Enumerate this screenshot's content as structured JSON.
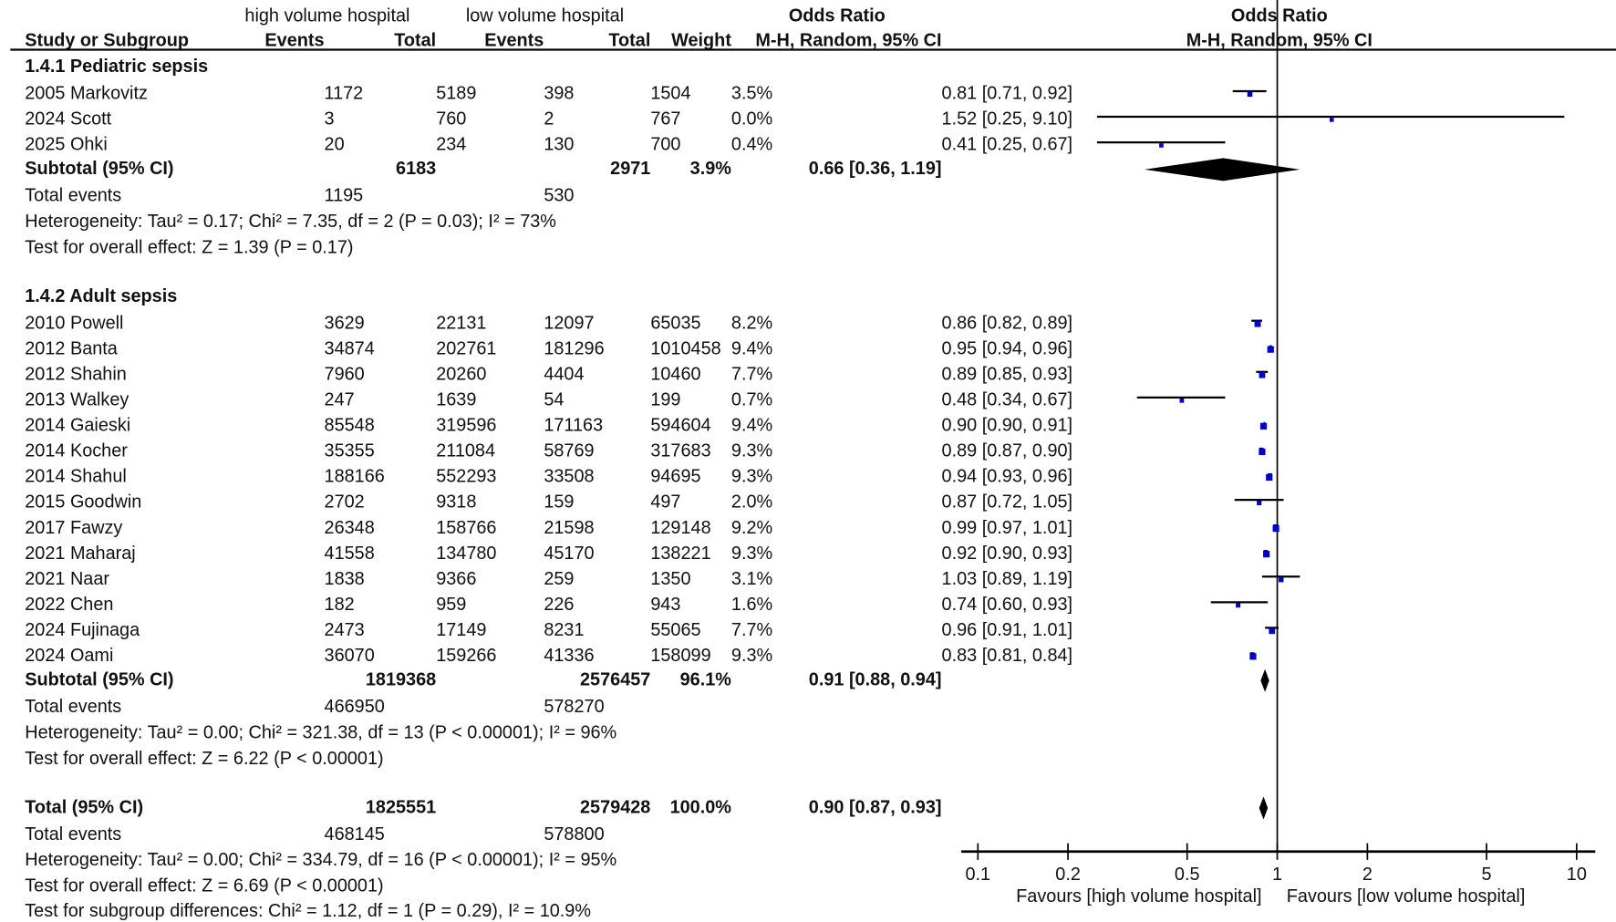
{
  "chart_data": {
    "type": "forest",
    "header": {
      "group_high": "high volume hospital",
      "group_low": "low volume hospital",
      "or_title": "Odds Ratio",
      "plot_title": "Odds Ratio",
      "study_col": "Study or Subgroup",
      "events": "Events",
      "total": "Total",
      "weight": "Weight",
      "method": "M-H, Random, 95% CI",
      "plot_method": "M-H, Random, 95% CI"
    },
    "x_axis": {
      "scale": "log",
      "ticks": [
        0.1,
        0.2,
        0.5,
        1,
        2,
        5,
        10
      ],
      "tick_labels": [
        "0.1",
        "0.2",
        "0.5",
        "1",
        "2",
        "5",
        "10"
      ],
      "xlim": [
        0.1,
        10
      ],
      "favours_left": "Favours [high volume hospital]",
      "favours_right": "Favours [low volume hospital]"
    },
    "colors": {
      "square": "#0000cc",
      "line": "#000000"
    },
    "subgroups": [
      {
        "title": "1.4.1 Pediatric sepsis",
        "studies": [
          {
            "name": "2005 Markovitz",
            "eh": "1172",
            "th": "5189",
            "el": "398",
            "tl": "1504",
            "weight": "3.5%",
            "w": 3.5,
            "ci_text": "0.81 [0.71, 0.92]",
            "or": 0.81,
            "lo": 0.71,
            "hi": 0.92
          },
          {
            "name": "2024 Scott",
            "eh": "3",
            "th": "760",
            "el": "2",
            "tl": "767",
            "weight": "0.0%",
            "w": 0.0,
            "ci_text": "1.52 [0.25, 9.10]",
            "or": 1.52,
            "lo": 0.25,
            "hi": 9.1
          },
          {
            "name": "2025 Ohki",
            "eh": "20",
            "th": "234",
            "el": "130",
            "tl": "700",
            "weight": "0.4%",
            "w": 0.4,
            "ci_text": "0.41 [0.25, 0.67]",
            "or": 0.41,
            "lo": 0.25,
            "hi": 0.67
          }
        ],
        "subtotal": {
          "label": "Subtotal (95% CI)",
          "th": "6183",
          "tl": "2971",
          "weight": "3.9%",
          "ci_text": "0.66 [0.36, 1.19]",
          "or": 0.66,
          "lo": 0.36,
          "hi": 1.19
        },
        "total_events": {
          "label": "Total events",
          "eh": "1195",
          "el": "530"
        },
        "heterogeneity": "Heterogeneity: Tau² = 0.17; Chi² = 7.35, df = 2 (P = 0.03); I² = 73%",
        "overall": "Test for overall effect: Z = 1.39 (P = 0.17)"
      },
      {
        "title": "1.4.2 Adult sepsis",
        "studies": [
          {
            "name": "2010 Powell",
            "eh": "3629",
            "th": "22131",
            "el": "12097",
            "tl": "65035",
            "weight": "8.2%",
            "w": 8.2,
            "ci_text": "0.86 [0.82, 0.89]",
            "or": 0.86,
            "lo": 0.82,
            "hi": 0.89
          },
          {
            "name": "2012 Banta",
            "eh": "34874",
            "th": "202761",
            "el": "181296",
            "tl": "1010458",
            "weight": "9.4%",
            "w": 9.4,
            "ci_text": "0.95 [0.94, 0.96]",
            "or": 0.95,
            "lo": 0.94,
            "hi": 0.96
          },
          {
            "name": "2012 Shahin",
            "eh": "7960",
            "th": "20260",
            "el": "4404",
            "tl": "10460",
            "weight": "7.7%",
            "w": 7.7,
            "ci_text": "0.89 [0.85, 0.93]",
            "or": 0.89,
            "lo": 0.85,
            "hi": 0.93
          },
          {
            "name": "2013 Walkey",
            "eh": "247",
            "th": "1639",
            "el": "54",
            "tl": "199",
            "weight": "0.7%",
            "w": 0.7,
            "ci_text": "0.48 [0.34, 0.67]",
            "or": 0.48,
            "lo": 0.34,
            "hi": 0.67
          },
          {
            "name": "2014 Gaieski",
            "eh": "85548",
            "th": "319596",
            "el": "171163",
            "tl": "594604",
            "weight": "9.4%",
            "w": 9.4,
            "ci_text": "0.90 [0.90, 0.91]",
            "or": 0.9,
            "lo": 0.9,
            "hi": 0.91
          },
          {
            "name": "2014 Kocher",
            "eh": "35355",
            "th": "211084",
            "el": "58769",
            "tl": "317683",
            "weight": "9.3%",
            "w": 9.3,
            "ci_text": "0.89 [0.87, 0.90]",
            "or": 0.89,
            "lo": 0.87,
            "hi": 0.9
          },
          {
            "name": "2014 Shahul",
            "eh": "188166",
            "th": "552293",
            "el": "33508",
            "tl": "94695",
            "weight": "9.3%",
            "w": 9.3,
            "ci_text": "0.94 [0.93, 0.96]",
            "or": 0.94,
            "lo": 0.93,
            "hi": 0.96
          },
          {
            "name": "2015 Goodwin",
            "eh": "2702",
            "th": "9318",
            "el": "159",
            "tl": "497",
            "weight": "2.0%",
            "w": 2.0,
            "ci_text": "0.87 [0.72, 1.05]",
            "or": 0.87,
            "lo": 0.72,
            "hi": 1.05
          },
          {
            "name": "2017 Fawzy",
            "eh": "26348",
            "th": "158766",
            "el": "21598",
            "tl": "129148",
            "weight": "9.2%",
            "w": 9.2,
            "ci_text": "0.99 [0.97, 1.01]",
            "or": 0.99,
            "lo": 0.97,
            "hi": 1.01
          },
          {
            "name": "2021 Maharaj",
            "eh": "41558",
            "th": "134780",
            "el": "45170",
            "tl": "138221",
            "weight": "9.3%",
            "w": 9.3,
            "ci_text": "0.92 [0.90, 0.93]",
            "or": 0.92,
            "lo": 0.9,
            "hi": 0.93
          },
          {
            "name": "2021 Naar",
            "eh": "1838",
            "th": "9366",
            "el": "259",
            "tl": "1350",
            "weight": "3.1%",
            "w": 3.1,
            "ci_text": "1.03 [0.89, 1.19]",
            "or": 1.03,
            "lo": 0.89,
            "hi": 1.19
          },
          {
            "name": "2022 Chen",
            "eh": "182",
            "th": "959",
            "el": "226",
            "tl": "943",
            "weight": "1.6%",
            "w": 1.6,
            "ci_text": "0.74 [0.60, 0.93]",
            "or": 0.74,
            "lo": 0.6,
            "hi": 0.93
          },
          {
            "name": "2024 Fujinaga",
            "eh": "2473",
            "th": "17149",
            "el": "8231",
            "tl": "55065",
            "weight": "7.7%",
            "w": 7.7,
            "ci_text": "0.96 [0.91, 1.01]",
            "or": 0.96,
            "lo": 0.91,
            "hi": 1.01
          },
          {
            "name": "2024 Oami",
            "eh": "36070",
            "th": "159266",
            "el": "41336",
            "tl": "158099",
            "weight": "9.3%",
            "w": 9.3,
            "ci_text": "0.83 [0.81, 0.84]",
            "or": 0.83,
            "lo": 0.81,
            "hi": 0.84
          }
        ],
        "subtotal": {
          "label": "Subtotal (95% CI)",
          "th": "1819368",
          "tl": "2576457",
          "weight": "96.1%",
          "ci_text": "0.91 [0.88, 0.94]",
          "or": 0.91,
          "lo": 0.88,
          "hi": 0.94
        },
        "total_events": {
          "label": "Total events",
          "eh": "466950",
          "el": "578270"
        },
        "heterogeneity": "Heterogeneity: Tau² = 0.00; Chi² = 321.38, df = 13 (P < 0.00001); I² = 96%",
        "overall": "Test for overall effect: Z = 6.22 (P < 0.00001)"
      }
    ],
    "total": {
      "label": "Total (95% CI)",
      "th": "1825551",
      "tl": "2579428",
      "weight": "100.0%",
      "ci_text": "0.90 [0.87, 0.93]",
      "or": 0.9,
      "lo": 0.87,
      "hi": 0.93
    },
    "total_events": {
      "label": "Total events",
      "eh": "468145",
      "el": "578800"
    },
    "heterogeneity": "Heterogeneity: Tau² = 0.00; Chi² = 334.79, df = 16 (P < 0.00001); I² = 95%",
    "overall": "Test for overall effect: Z = 6.69 (P < 0.00001)",
    "subgroup_diff": "Test for subgroup differences: Chi² = 1.12, df = 1 (P = 0.29), I² = 10.9%"
  }
}
